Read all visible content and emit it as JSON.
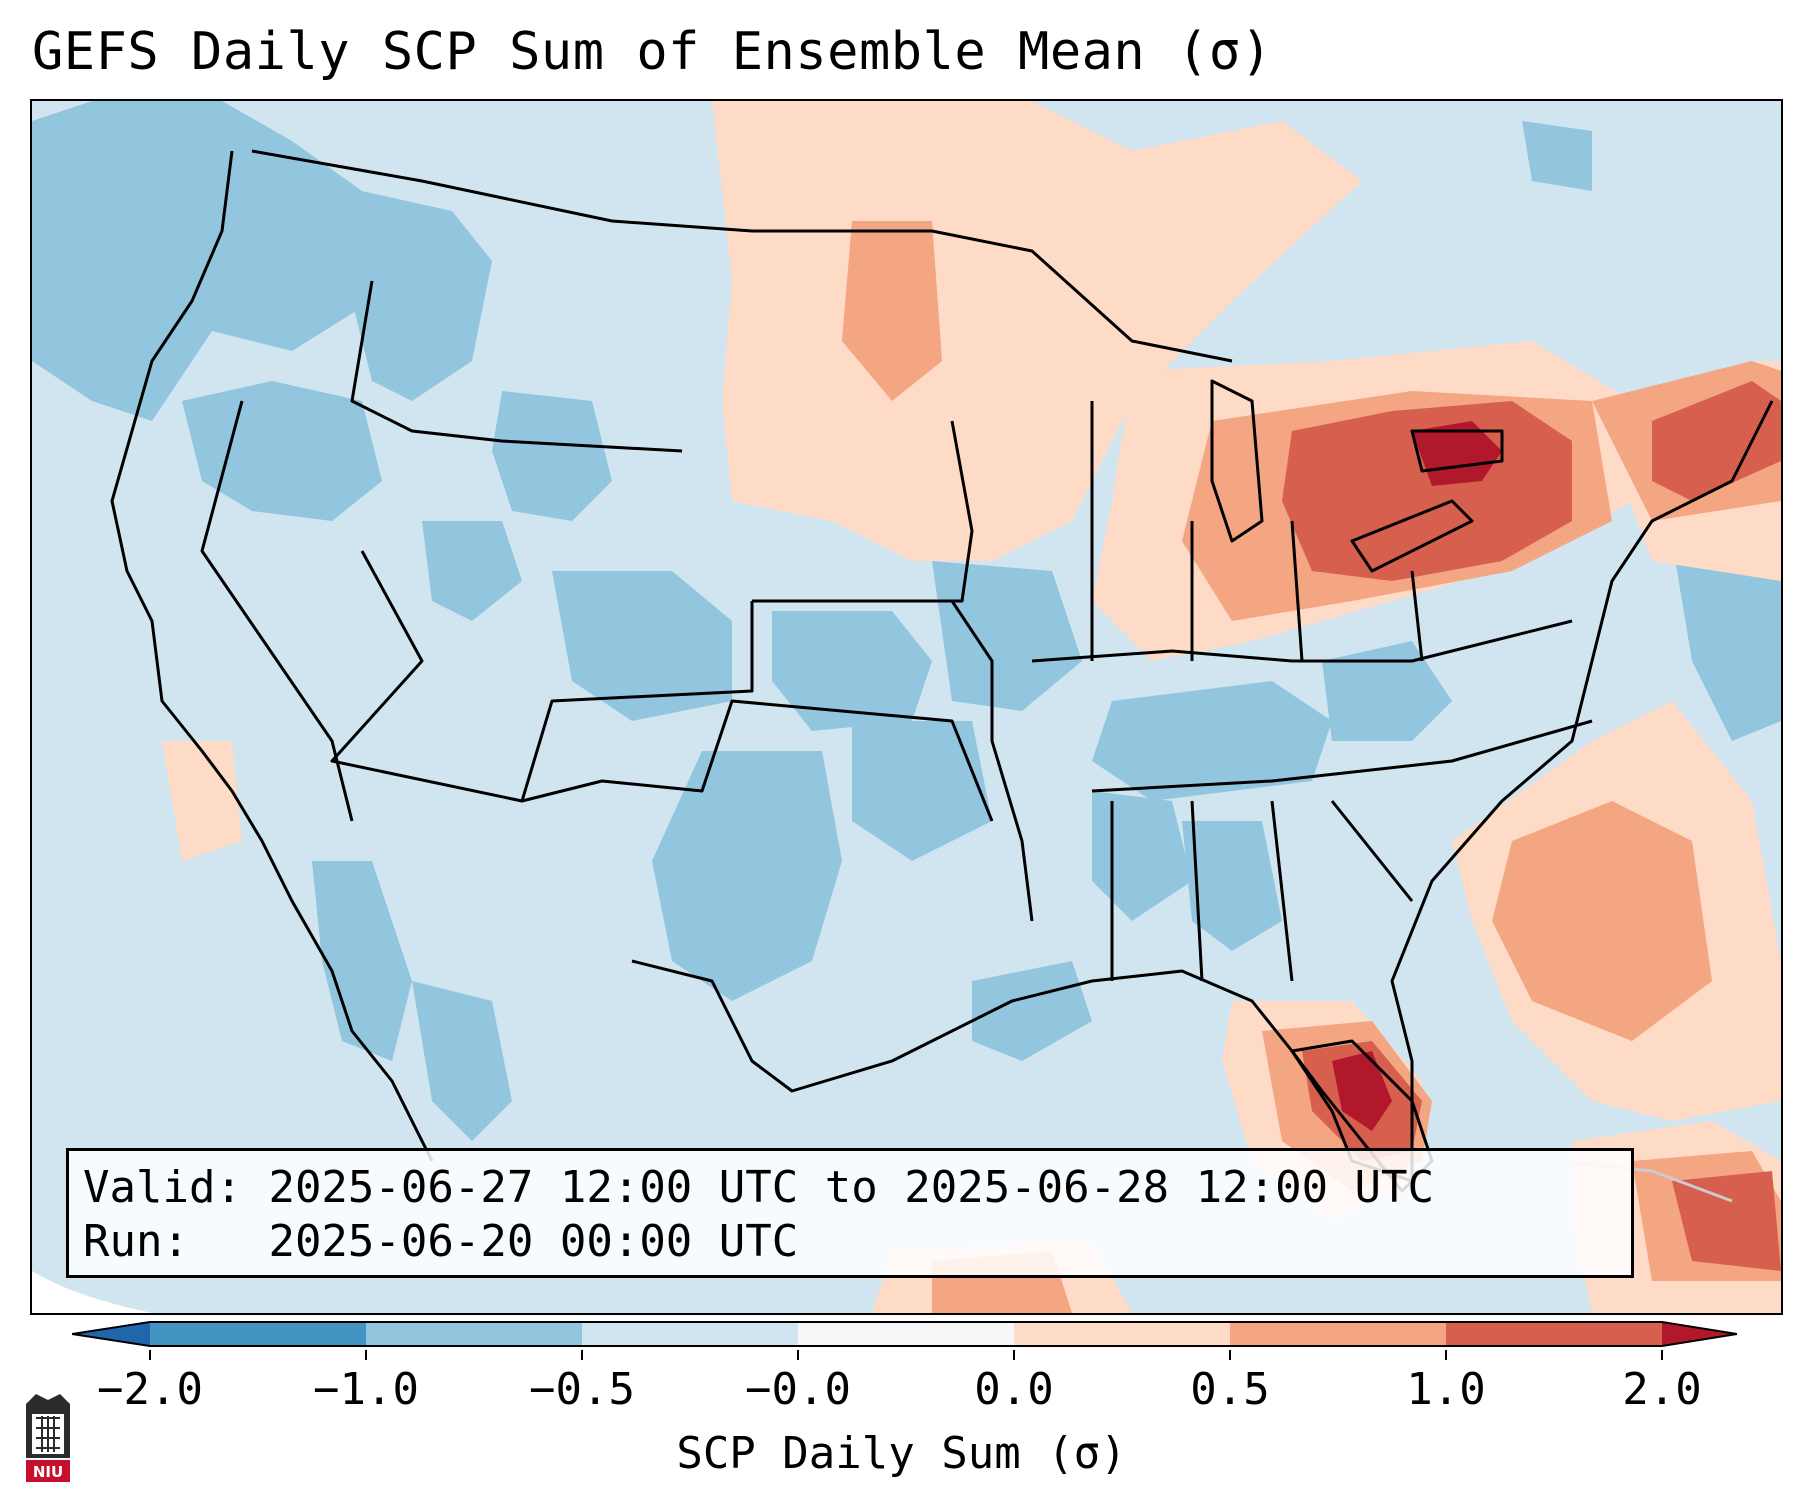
{
  "title": "GEFS Daily SCP Sum of Ensemble Mean (σ)",
  "info": {
    "valid_label": "Valid:",
    "valid_value": "2025-06-27 12:00 UTC to 2025-06-28 12:00 UTC",
    "run_label": "Run:",
    "run_value": "2025-06-20 00:00 UTC"
  },
  "colorbar": {
    "label": "SCP Daily Sum (σ)",
    "tick_labels": [
      "−2.0",
      "−1.0",
      "−0.5",
      "−0.0",
      "0.0",
      "0.5",
      "1.0",
      "2.0"
    ],
    "bin_colors": [
      "#4393c3",
      "#92c5de",
      "#d1e5f0",
      "#f7f7f7",
      "#fddbc7",
      "#f4a582",
      "#d6604d",
      "#b2182b"
    ],
    "under_color": "#2166ac",
    "over_color": "#b2182b"
  },
  "map_colors": {
    "background": "#d1e5f0",
    "light_blue": "#92c5de",
    "light_red": "#fddbc7",
    "mid_red": "#f4a582",
    "strong_red": "#d6604d",
    "darkest_red": "#b2182b"
  },
  "logo": {
    "text": "NIU"
  }
}
